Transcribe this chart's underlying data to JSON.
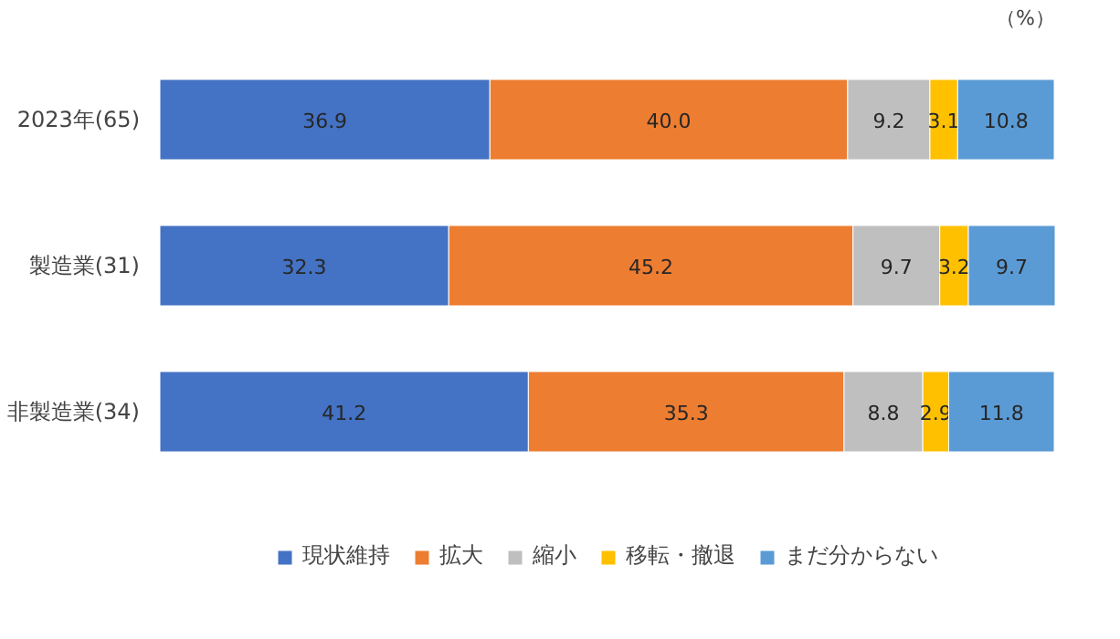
{
  "chart_data": {
    "type": "bar",
    "orientation": "horizontal",
    "stacked": true,
    "legend": "bottom",
    "grid": false,
    "tick_labels": "y",
    "categories": [
      "2023年(65)",
      "製造業(31)",
      "非製造業(34)"
    ],
    "annotations": [
      "（%）"
    ],
    "series": [
      {
        "name": "現状維持",
        "color": "#4472c4",
        "values": [
          36.9,
          32.3,
          41.2
        ],
        "value_labels": [
          "36.9",
          "32.3",
          "41.2"
        ]
      },
      {
        "name": "拡大",
        "color": "#ed7d31",
        "values": [
          40.0,
          45.2,
          35.3
        ],
        "value_labels": [
          "40.0",
          "45.2",
          "35.3"
        ]
      },
      {
        "name": "縮小",
        "color": "#bfbfbf",
        "values": [
          9.2,
          9.7,
          8.8
        ],
        "value_labels": [
          "9.2",
          "9.7",
          "8.8"
        ]
      },
      {
        "name": "移転・撤退",
        "color": "#ffc000",
        "values": [
          3.1,
          3.2,
          2.9
        ],
        "value_labels": [
          "3.1",
          "3.2",
          "2.9"
        ]
      },
      {
        "name": "まだ分からない",
        "color": "#5b9bd5",
        "values": [
          10.8,
          9.7,
          11.8
        ],
        "value_labels": [
          "10.8",
          "9.7",
          "11.8"
        ]
      }
    ]
  }
}
